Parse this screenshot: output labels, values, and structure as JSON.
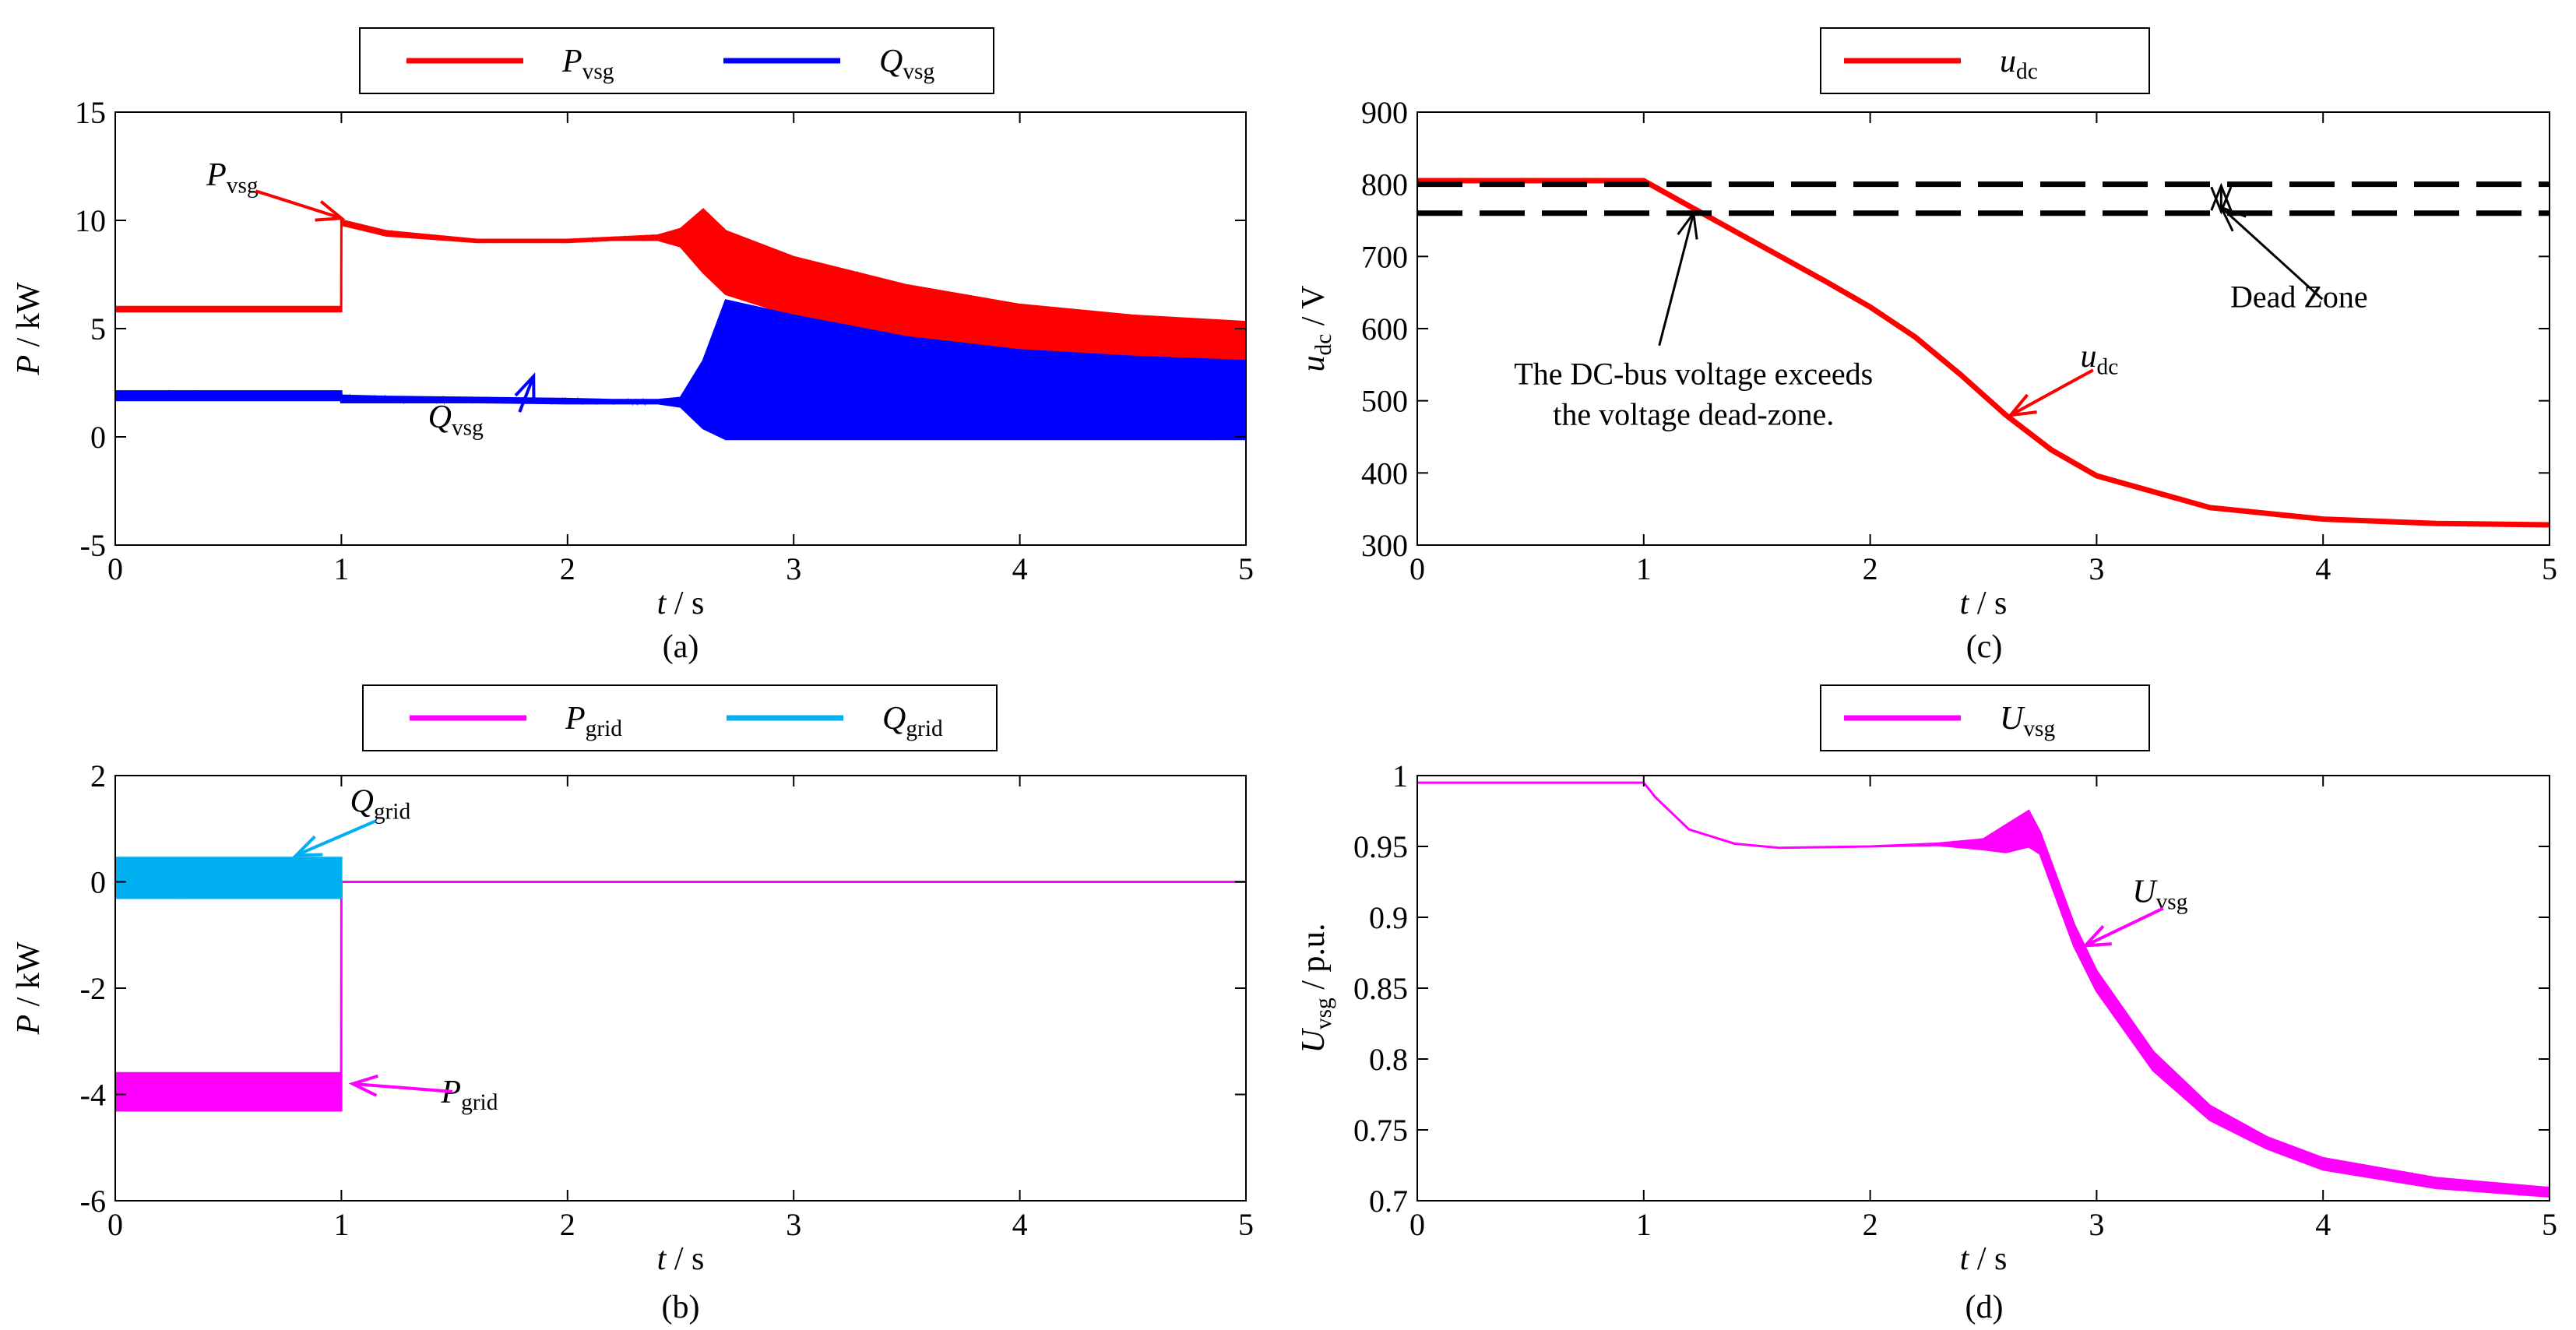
{
  "chart_data": [
    {
      "id": "a",
      "type": "line",
      "caption": "(a)",
      "xlabel": {
        "var": "t",
        "unit": " / s"
      },
      "ylabel": {
        "var": "P",
        "unit": " / kW"
      },
      "xlim": [
        0,
        5
      ],
      "ylim": [
        -5,
        15
      ],
      "xticks": [
        0,
        1,
        2,
        3,
        4,
        5
      ],
      "yticks": [
        -5,
        0,
        5,
        10,
        15
      ],
      "grid": false,
      "legend_position": "top-center",
      "series": [
        {
          "name": "P",
          "sub": "vsg",
          "color": "#ff0000",
          "x": [
            0,
            0.999,
            1.0,
            1.2,
            1.6,
            2.0,
            2.2,
            2.4,
            2.5,
            2.6,
            2.7,
            3.0,
            3.5,
            4.0,
            4.5,
            5.0
          ],
          "y": [
            6,
            6,
            10,
            9.5,
            9.1,
            9.1,
            9.2,
            9.3,
            9.6,
            10.5,
            9.5,
            8.3,
            7.0,
            6.1,
            5.6,
            5.3
          ],
          "y_low": [
            5.8,
            5.8,
            9.8,
            9.3,
            9.0,
            9.0,
            9.1,
            9.1,
            8.8,
            7.6,
            6.6,
            5.6,
            4.6,
            4.0,
            3.7,
            3.5
          ]
        },
        {
          "name": "Q",
          "sub": "vsg",
          "color": "#0000ff",
          "x": [
            0,
            0.999,
            1.0,
            1.2,
            1.6,
            2.0,
            2.2,
            2.4,
            2.5,
            2.6,
            2.7,
            3.0,
            3.5,
            4.0,
            4.5,
            5.0
          ],
          "y": [
            2.1,
            2.1,
            1.9,
            1.85,
            1.8,
            1.75,
            1.7,
            1.7,
            1.8,
            3.5,
            6.3,
            5.6,
            4.6,
            4.0,
            3.7,
            3.5
          ],
          "y_low": [
            1.7,
            1.7,
            1.6,
            1.6,
            1.6,
            1.55,
            1.55,
            1.55,
            1.4,
            0.4,
            -0.1,
            -0.1,
            -0.1,
            -0.1,
            -0.1,
            -0.1
          ]
        }
      ],
      "annotations": [
        {
          "var": "P",
          "sub": "vsg",
          "at": [
            1.0,
            10.1
          ]
        },
        {
          "var": "Q",
          "sub": "vsg",
          "at": [
            1.85,
            2.8
          ]
        }
      ]
    },
    {
      "id": "b",
      "type": "line",
      "caption": "(b)",
      "xlabel": {
        "var": "t",
        "unit": " / s"
      },
      "ylabel": {
        "var": "P",
        "unit": " / kW"
      },
      "xlim": [
        0,
        5
      ],
      "ylim": [
        -6,
        2
      ],
      "xticks": [
        0,
        1,
        2,
        3,
        4,
        5
      ],
      "yticks": [
        -6,
        -4,
        -2,
        0,
        2
      ],
      "grid": false,
      "legend_position": "top-center",
      "series": [
        {
          "name": "P",
          "sub": "grid",
          "color": "#ff00ff",
          "x": [
            0,
            0.999,
            1.0,
            1.01,
            5.0
          ],
          "y": [
            -3.6,
            -3.6,
            0.0,
            0.0,
            0.0
          ],
          "y_low": [
            -4.3,
            -4.3,
            0.0,
            0.0,
            0.0
          ]
        },
        {
          "name": "Q",
          "sub": "grid",
          "color": "#00b0f0",
          "x": [
            0,
            0.999
          ],
          "y": [
            0.45,
            0.45
          ],
          "y_low": [
            -0.3,
            -0.3
          ]
        }
      ],
      "annotations": [
        {
          "var": "Q",
          "sub": "grid",
          "at": [
            0.8,
            0.5
          ]
        },
        {
          "var": "P",
          "sub": "grid",
          "at": [
            1.05,
            -3.8
          ]
        }
      ]
    },
    {
      "id": "c",
      "type": "line",
      "caption": "(c)",
      "xlabel": {
        "var": "t",
        "unit": " / s"
      },
      "ylabel": {
        "var": "u",
        "sub": "dc",
        "unit": " / V"
      },
      "xlim": [
        0,
        5
      ],
      "ylim": [
        300,
        900
      ],
      "xticks": [
        0,
        1,
        2,
        3,
        4,
        5
      ],
      "yticks": [
        300,
        400,
        500,
        600,
        700,
        800,
        900
      ],
      "grid": false,
      "legend_position": "top-center",
      "series": [
        {
          "name": "u",
          "sub": "dc",
          "color": "#ff0000",
          "x": [
            0,
            1.0,
            1.2,
            1.5,
            1.8,
            2.0,
            2.2,
            2.4,
            2.6,
            2.8,
            3.0,
            3.5,
            4.0,
            4.5,
            5.0
          ],
          "y": [
            805,
            805,
            770,
            718,
            666,
            630,
            588,
            536,
            480,
            432,
            396,
            352,
            336,
            330,
            328
          ]
        },
        {
          "name": "",
          "color": "#000000",
          "dashed": true,
          "x": [
            0,
            5
          ],
          "y": [
            800,
            800
          ]
        },
        {
          "name": "",
          "color": "#000000",
          "dashed": true,
          "x": [
            0,
            5
          ],
          "y": [
            760,
            760
          ]
        }
      ],
      "annotations": [
        {
          "var": "u",
          "sub": "dc",
          "at": [
            2.62,
            480
          ]
        },
        {
          "text": "Dead Zone",
          "at": [
            3.55,
            768
          ]
        },
        {
          "lines": [
            "The DC-bus voltage exceeds",
            "the voltage dead-zone."
          ],
          "at": [
            1.22,
            760
          ]
        }
      ]
    },
    {
      "id": "d",
      "type": "line",
      "caption": "(d)",
      "xlabel": {
        "var": "t",
        "unit": " / s"
      },
      "ylabel": {
        "var": "U",
        "sub": "vsg",
        "unit": " / p.u."
      },
      "xlim": [
        0,
        5
      ],
      "ylim": [
        0.7,
        1.0
      ],
      "xticks": [
        0,
        1,
        2,
        3,
        4,
        5
      ],
      "yticks": [
        0.7,
        0.75,
        0.8,
        0.85,
        0.9,
        0.95,
        1
      ],
      "grid": false,
      "legend_position": "top-center",
      "series": [
        {
          "name": "U",
          "sub": "vsg",
          "color": "#ff00ff",
          "x": [
            0,
            1.0,
            1.05,
            1.2,
            1.4,
            1.6,
            2.0,
            2.3,
            2.5,
            2.6,
            2.7,
            2.75,
            2.9,
            3.0,
            3.25,
            3.5,
            3.75,
            4.0,
            4.5,
            5.0
          ],
          "y": [
            0.995,
            0.995,
            0.985,
            0.962,
            0.952,
            0.949,
            0.95,
            0.952,
            0.955,
            0.965,
            0.975,
            0.96,
            0.895,
            0.862,
            0.805,
            0.767,
            0.745,
            0.73,
            0.716,
            0.709
          ],
          "y_low": [
            0.995,
            0.995,
            0.985,
            0.962,
            0.952,
            0.949,
            0.95,
            0.951,
            0.948,
            0.946,
            0.95,
            0.945,
            0.88,
            0.848,
            0.792,
            0.757,
            0.737,
            0.722,
            0.709,
            0.703
          ]
        }
      ],
      "annotations": [
        {
          "var": "U",
          "sub": "vsg",
          "at": [
            2.95,
            0.88
          ]
        }
      ]
    }
  ]
}
